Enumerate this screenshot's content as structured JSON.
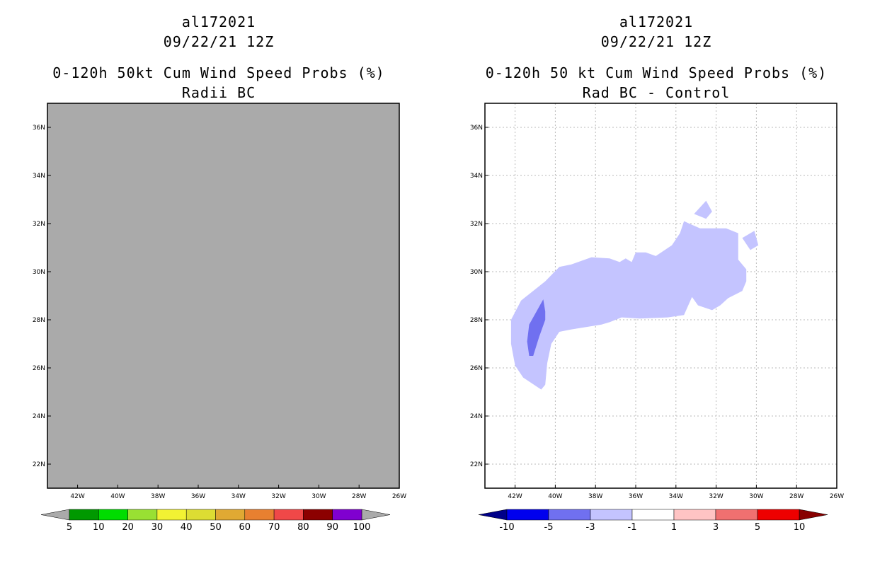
{
  "chart_data": [
    {
      "type": "heatmap",
      "storm_id": "al172021",
      "date": "09/22/21 12Z",
      "title": "0-120h 50kt Cum Wind Speed Probs (%)",
      "subtitle": "Radii BC",
      "x_ticks": [
        "42W",
        "40W",
        "38W",
        "36W",
        "34W",
        "32W",
        "30W",
        "28W",
        "26W"
      ],
      "y_ticks": [
        "22N",
        "24N",
        "26N",
        "28N",
        "30N",
        "32N",
        "34N",
        "36N"
      ],
      "xlim": [
        -43.5,
        -26
      ],
      "ylim": [
        21,
        37
      ],
      "background": "#aaaaaa",
      "grid": false,
      "colorbar": {
        "labels": [
          "5",
          "10",
          "20",
          "30",
          "40",
          "50",
          "60",
          "70",
          "80",
          "90",
          "100"
        ],
        "colors": [
          "#009900",
          "#00dd00",
          "#99e033",
          "#f2f233",
          "#dddd33",
          "#e0a933",
          "#e88030",
          "#f04848",
          "#8c0000",
          "#8000d0"
        ],
        "under_color": "#aaaaaa",
        "over_color": "#aaaaaa"
      }
    },
    {
      "type": "heatmap",
      "storm_id": "al172021",
      "date": "09/22/21 12Z",
      "title": "0-120h 50 kt Cum Wind Speed Probs (%)",
      "subtitle": "Rad BC - Control",
      "x_ticks": [
        "42W",
        "40W",
        "38W",
        "36W",
        "34W",
        "32W",
        "30W",
        "28W",
        "26W"
      ],
      "y_ticks": [
        "22N",
        "24N",
        "26N",
        "28N",
        "30N",
        "32N",
        "34N",
        "36N"
      ],
      "xlim": [
        -43.5,
        -26
      ],
      "ylim": [
        21,
        37
      ],
      "background": "#ffffff",
      "grid": true,
      "colorbar": {
        "labels": [
          "-10",
          "-5",
          "-3",
          "-1",
          "1",
          "3",
          "5",
          "10"
        ],
        "colors": [
          "#0000ee",
          "#7070f0",
          "#c4c4ff",
          "#ffffff",
          "#ffc4c4",
          "#f07070",
          "#ee0000"
        ],
        "under_color": "#000088",
        "over_color": "#880000"
      },
      "regions": [
        {
          "level": "-3 to -1",
          "color": "#c4c4ff",
          "polygon": [
            [
              -42.2,
              28
            ],
            [
              -41.7,
              28.8
            ],
            [
              -40.5,
              29.6
            ],
            [
              -39.8,
              30.2
            ],
            [
              -39.2,
              30.3
            ],
            [
              -38.2,
              30.6
            ],
            [
              -37.3,
              30.55
            ],
            [
              -36.8,
              30.4
            ],
            [
              -36.5,
              30.55
            ],
            [
              -36.2,
              30.4
            ],
            [
              -36,
              30.8
            ],
            [
              -35.5,
              30.8
            ],
            [
              -35,
              30.65
            ],
            [
              -34.2,
              31.1
            ],
            [
              -33.8,
              31.6
            ],
            [
              -33.6,
              32.1
            ],
            [
              -33.2,
              31.95
            ],
            [
              -32.8,
              31.8
            ],
            [
              -31.5,
              31.8
            ],
            [
              -30.9,
              31.6
            ],
            [
              -30.9,
              30.5
            ],
            [
              -30.5,
              30.1
            ],
            [
              -30.5,
              29.6
            ],
            [
              -30.7,
              29.2
            ],
            [
              -31.4,
              28.9
            ],
            [
              -31.8,
              28.6
            ],
            [
              -32.2,
              28.4
            ],
            [
              -32.9,
              28.6
            ],
            [
              -33.2,
              28.95
            ],
            [
              -33.6,
              28.2
            ],
            [
              -34.4,
              28.1
            ],
            [
              -35.8,
              28.05
            ],
            [
              -36.7,
              28.1
            ],
            [
              -37.3,
              27.9
            ],
            [
              -37.7,
              27.8
            ],
            [
              -39.2,
              27.6
            ],
            [
              -39.8,
              27.5
            ],
            [
              -40.2,
              27
            ],
            [
              -40.4,
              26.2
            ],
            [
              -40.5,
              25.3
            ],
            [
              -40.7,
              25.1
            ],
            [
              -41.6,
              25.6
            ],
            [
              -42,
              26.1
            ],
            [
              -42.2,
              27
            ]
          ]
        },
        {
          "level": "-3 to -1",
          "color": "#c4c4ff",
          "polygon": [
            [
              -33.1,
              32.4
            ],
            [
              -32.5,
              32.95
            ],
            [
              -32.2,
              32.5
            ],
            [
              -32.5,
              32.2
            ]
          ]
        },
        {
          "level": "-3 to -1",
          "color": "#c4c4ff",
          "polygon": [
            [
              -30.7,
              31.4
            ],
            [
              -30.1,
              31.7
            ],
            [
              -29.9,
              31.1
            ],
            [
              -30.3,
              30.9
            ]
          ]
        },
        {
          "level": "-5 to -3",
          "color": "#7070f0",
          "polygon": [
            [
              -41.3,
              27.8
            ],
            [
              -40.6,
              28.85
            ],
            [
              -40.5,
              28.35
            ],
            [
              -40.5,
              28
            ],
            [
              -40.8,
              27.3
            ],
            [
              -41.1,
              26.5
            ],
            [
              -41.3,
              26.5
            ],
            [
              -41.4,
              27.1
            ]
          ]
        }
      ]
    }
  ]
}
